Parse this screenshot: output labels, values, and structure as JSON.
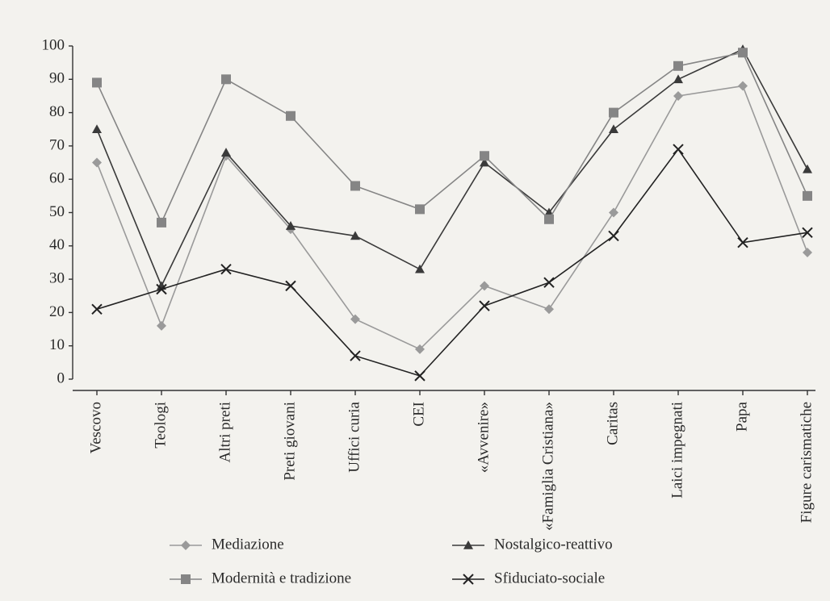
{
  "chart_data": {
    "type": "line",
    "categories": [
      "Vescovo",
      "Teologi",
      "Altri preti",
      "Preti giovani",
      "Uffici curia",
      "CEI",
      "«Avvenire»",
      "«Famiglia Cristiana»",
      "Caritas",
      "Laici impegnati",
      "Papa",
      "Figure carismatiche"
    ],
    "series": [
      {
        "name": "Mediazione",
        "color": "#9a9a9a",
        "marker": "diamond",
        "values": [
          65,
          16,
          67,
          45,
          18,
          9,
          28,
          21,
          50,
          85,
          88,
          38
        ]
      },
      {
        "name": "Nostalgico-reattivo",
        "color": "#3a3a3a",
        "marker": "triangle",
        "values": [
          75,
          28,
          68,
          46,
          43,
          33,
          65,
          50,
          75,
          90,
          99,
          63
        ]
      },
      {
        "name": "Modernità e tradizione",
        "color": "#858585",
        "marker": "square",
        "values": [
          89,
          47,
          90,
          79,
          58,
          51,
          67,
          48,
          80,
          94,
          98,
          55
        ]
      },
      {
        "name": "Sfiduciato-sociale",
        "color": "#222222",
        "marker": "x",
        "values": [
          21,
          27,
          33,
          28,
          7,
          1,
          22,
          29,
          43,
          69,
          41,
          44
        ]
      }
    ],
    "ylim": [
      0,
      100
    ],
    "yticks": [
      0,
      10,
      20,
      30,
      40,
      50,
      60,
      70,
      80,
      90,
      100
    ]
  }
}
